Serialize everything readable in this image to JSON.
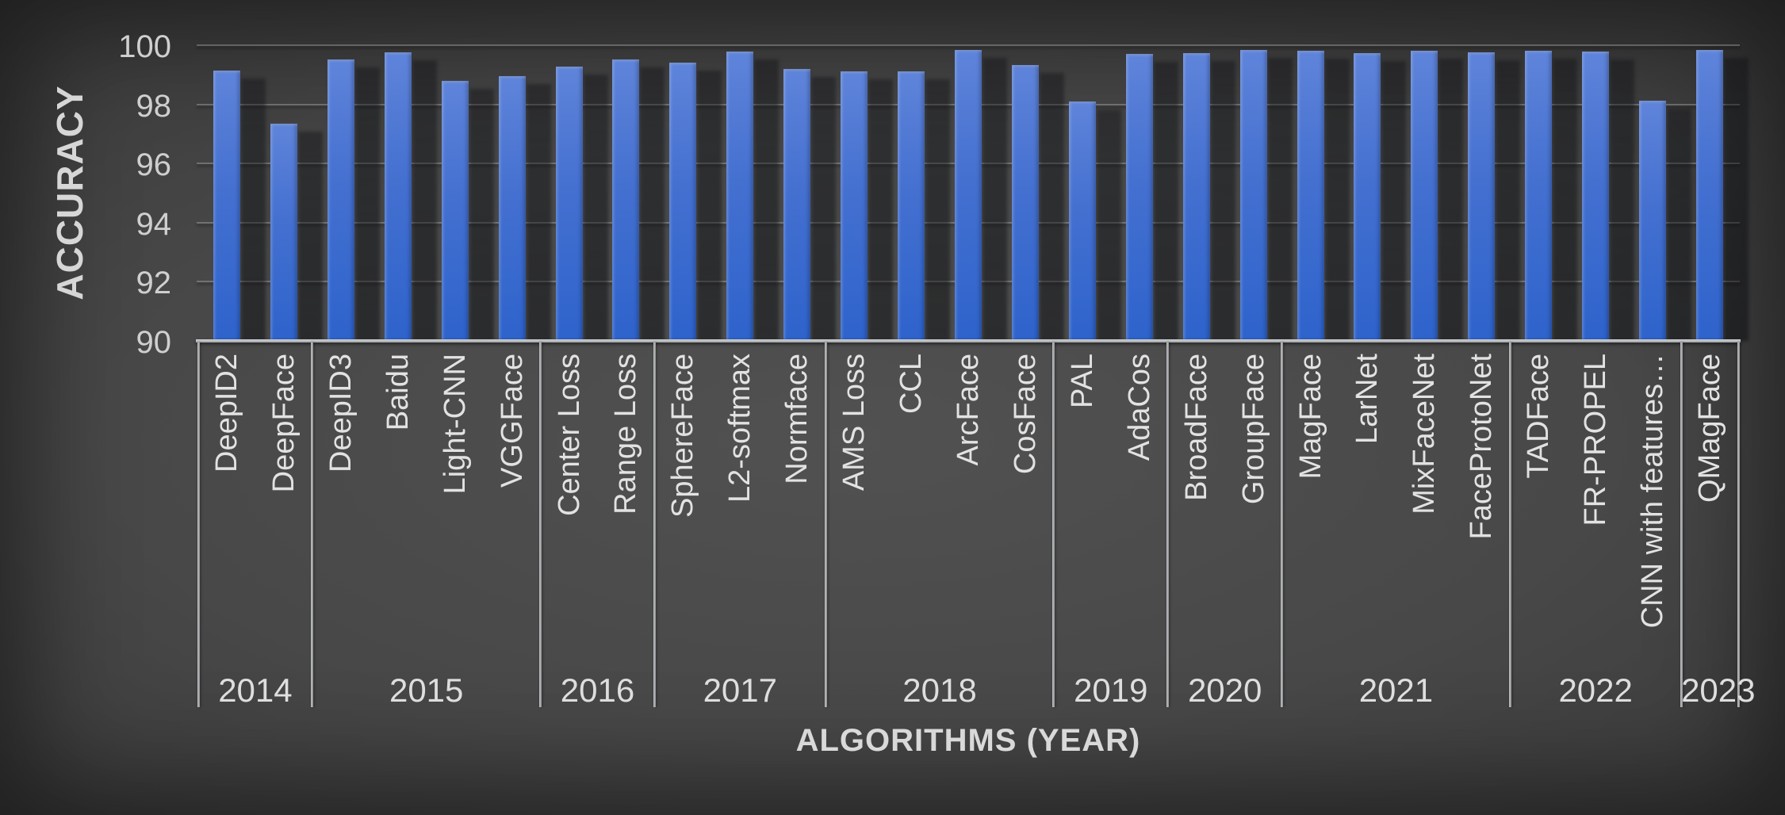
{
  "chart_data": {
    "type": "bar",
    "title": "",
    "xlabel": "ALGORITHMS (YEAR)",
    "ylabel": "ACCURACY",
    "ylim": [
      90,
      100
    ],
    "yticks": [
      90,
      92,
      94,
      96,
      98,
      100
    ],
    "grid": "horizontal",
    "legend": "none",
    "groups": [
      {
        "year": "2014",
        "items": [
          {
            "label": "DeepID2",
            "value": 99.15
          },
          {
            "label": "DeepFace",
            "value": 97.35
          }
        ]
      },
      {
        "year": "2015",
        "items": [
          {
            "label": "DeepID3",
            "value": 99.53
          },
          {
            "label": "Baidu",
            "value": 99.77
          },
          {
            "label": "Light-CNN",
            "value": 98.8
          },
          {
            "label": "VGGFace",
            "value": 98.95
          }
        ]
      },
      {
        "year": "2016",
        "items": [
          {
            "label": "Center Loss",
            "value": 99.28
          },
          {
            "label": "Range Loss",
            "value": 99.52
          }
        ]
      },
      {
        "year": "2017",
        "items": [
          {
            "label": "SphereFace",
            "value": 99.42
          },
          {
            "label": "L2-softmax",
            "value": 99.78
          },
          {
            "label": "Normface",
            "value": 99.19
          }
        ]
      },
      {
        "year": "2018",
        "items": [
          {
            "label": "AMS Loss",
            "value": 99.12
          },
          {
            "label": "CCL",
            "value": 99.12
          },
          {
            "label": "ArcFace",
            "value": 99.83
          },
          {
            "label": "CosFace",
            "value": 99.33
          }
        ]
      },
      {
        "year": "2019",
        "items": [
          {
            "label": "PAL",
            "value": 98.1
          },
          {
            "label": "AdaCos",
            "value": 99.7
          }
        ]
      },
      {
        "year": "2020",
        "items": [
          {
            "label": "BroadFace",
            "value": 99.72
          },
          {
            "label": "GroupFace",
            "value": 99.85
          }
        ]
      },
      {
        "year": "2021",
        "items": [
          {
            "label": "MagFace",
            "value": 99.8
          },
          {
            "label": "LarNet",
            "value": 99.72
          },
          {
            "label": "MixFaceNet",
            "value": 99.8
          },
          {
            "label": "FaceProtoNet",
            "value": 99.75
          }
        ]
      },
      {
        "year": "2022",
        "items": [
          {
            "label": "TADFace",
            "value": 99.81
          },
          {
            "label": "FR-PROPEL",
            "value": 99.78
          },
          {
            "label": "CNN with features…",
            "value": 98.12
          }
        ]
      },
      {
        "year": "2023",
        "items": [
          {
            "label": "QMagFace",
            "value": 99.83
          }
        ]
      }
    ],
    "colors": {
      "bar_top": "#5f84da",
      "bar_bottom": "#2e63cc",
      "background_center": "#515151",
      "background_edge": "#1d1d1d",
      "gridline": "#d2d6da",
      "axis_line": "#bfc3c6",
      "text": "#dedede"
    }
  }
}
